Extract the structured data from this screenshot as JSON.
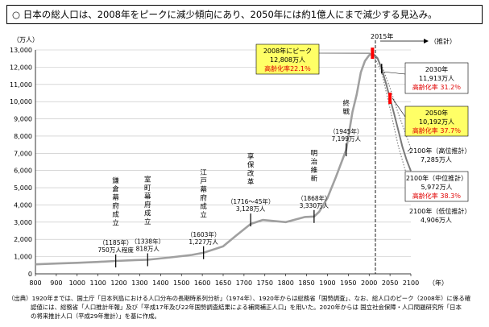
{
  "headline": {
    "marker": "○",
    "text": "日本の総人口は、2008年をピークに減少傾向にあり、2050年には約1億人にまで減少する見込み。"
  },
  "chart_data": {
    "type": "line",
    "yunit": "（万人）",
    "xunit": "（年）",
    "xlim": [
      800,
      2100
    ],
    "ylim": [
      0,
      13000
    ],
    "xticks": [
      800,
      900,
      1000,
      1100,
      1200,
      1300,
      1400,
      1500,
      1600,
      1650,
      1700,
      1750,
      1800,
      1850,
      1900,
      1950,
      2000,
      2050,
      2100
    ],
    "yticks": [
      "0",
      "1,000",
      "2,000",
      "3,000",
      "4,000",
      "5,000",
      "6,000",
      "7,000",
      "8,000",
      "9,000",
      "10,000",
      "11,000",
      "12,000",
      "13,000"
    ],
    "historical": [
      [
        800,
        551
      ],
      [
        900,
        600
      ],
      [
        1000,
        640
      ],
      [
        1100,
        690
      ],
      [
        1185,
        750
      ],
      [
        1280,
        800
      ],
      [
        1338,
        818
      ],
      [
        1450,
        960
      ],
      [
        1550,
        1100
      ],
      [
        1603,
        1227
      ],
      [
        1650,
        1600
      ],
      [
        1680,
        2200
      ],
      [
        1716,
        2900
      ],
      [
        1745,
        3128
      ],
      [
        1800,
        3000
      ],
      [
        1846,
        3300
      ],
      [
        1868,
        3330
      ],
      [
        1880,
        3600
      ],
      [
        1900,
        4400
      ],
      [
        1920,
        5600
      ],
      [
        1945,
        7199
      ],
      [
        1960,
        9400
      ],
      [
        1970,
        10400
      ],
      [
        1980,
        11700
      ],
      [
        1990,
        12360
      ],
      [
        2000,
        12690
      ],
      [
        2008,
        12808
      ]
    ],
    "proj_middle": [
      [
        2008,
        12808
      ],
      [
        2020,
        12530
      ],
      [
        2030,
        11913
      ],
      [
        2040,
        11090
      ],
      [
        2050,
        10192
      ],
      [
        2060,
        9280
      ],
      [
        2070,
        8320
      ],
      [
        2080,
        7360
      ],
      [
        2090,
        6600
      ],
      [
        2100,
        5972
      ]
    ],
    "proj_high": [
      [
        2008,
        12808
      ],
      [
        2030,
        12100
      ],
      [
        2050,
        10800
      ],
      [
        2070,
        9300
      ],
      [
        2100,
        7285
      ]
    ],
    "proj_low": [
      [
        2008,
        12808
      ],
      [
        2030,
        11700
      ],
      [
        2050,
        9600
      ],
      [
        2070,
        7400
      ],
      [
        2100,
        4906
      ]
    ],
    "divider_label": "2015年",
    "projection_arrow_label": "（推計）",
    "period_markers": [
      {
        "label": "鎌倉幕府成立",
        "x": 1185,
        "y": 750,
        "sub": "（1185年）",
        "value": "750万人程度"
      },
      {
        "label": "室町幕府成立",
        "x": 1338,
        "y": 818,
        "sub": "（1338年）",
        "value": "818万人"
      },
      {
        "label": "江戸幕府成立",
        "x": 1603,
        "y": 1227,
        "sub": "（1603年）",
        "value": "1,227万人"
      },
      {
        "label": "享保改革",
        "x": 1716,
        "y": 3128,
        "sub": "（1716～45年）",
        "value": "3,128万人"
      },
      {
        "label": "明治維新",
        "x": 1868,
        "y": 3330,
        "sub": "（1868年）",
        "value": "3,330万人"
      },
      {
        "label": "終戦",
        "x": 1945,
        "y": 7199,
        "sub": "（1945年）",
        "value": "7,199万人"
      }
    ],
    "peak_box": {
      "line1": "2008年にピーク",
      "line2": "12,808万人",
      "line3": "高齢化率22.1％"
    },
    "callout_2030": {
      "line1": "2030年",
      "line2": "11,913万人",
      "line3": "高齢化率 31.2％"
    },
    "callout_2050": {
      "line1": "2050年",
      "line2": "10,192万人",
      "line3": "高齢化率 37.7％"
    },
    "label_high": {
      "line1": "2100年（高位推計）",
      "line2": "7,285万人"
    },
    "label_middle": {
      "line1": "2100年（中位推計）",
      "line2": "5,972万人",
      "line3": "高齢化率 38.3％"
    },
    "label_low": {
      "line1": "2100年（低位推計）",
      "line2": "4,906万人"
    },
    "colors": {
      "line": "#a0a0a0",
      "projection": "#7a7a7a",
      "grid": "#bfbfbf",
      "highlight": "#ff0000",
      "yellow": "#ffff66",
      "red_text": "#e00000"
    }
  },
  "footnote": {
    "line1": "（出典）1920年までは、国土庁「日本列島における人口分布の長期時系列分析」（1974年）、1920年からは総務省「国勢調査」、なお、総人口のピーク（2008年）に係る確",
    "line2": "認値には、総務省「人口推計年報」及び「平成17年及び22年国勢調査結果による補間補正人口」を用いた。2020年からは 国立社会保障・人口問題研究所「日本",
    "line3": "の将来推計人口（平成29年推計）」を基に作成。"
  }
}
